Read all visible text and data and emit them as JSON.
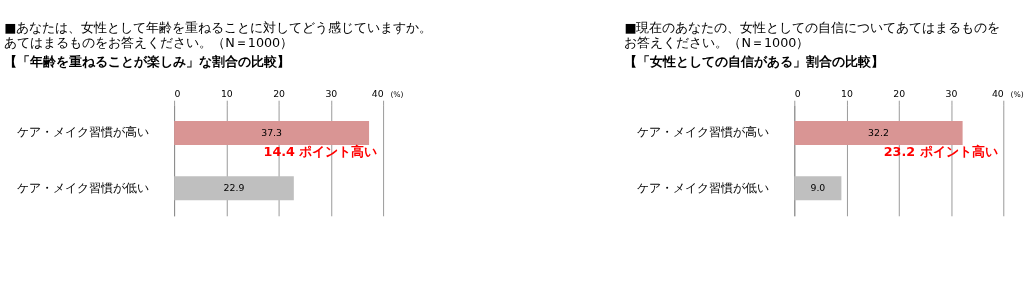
{
  "chart_data": [
    {
      "type": "bar",
      "orientation": "horizontal",
      "title": [
        "■あなたは、女性として年齢を重ねることに対してどう感じていますか。",
        "あてはまるものをお答えください。（N＝1000）"
      ],
      "subtitle": "【「年齢を重ねることが楽しみ」な割合の比較】",
      "xlabel": "(%)",
      "categories": [
        "ケア・メイク習慣が高い",
        "ケア・メイク習慣が低い"
      ],
      "values": [
        37.3,
        22.9
      ],
      "value_labels": [
        "37.3",
        "22.9"
      ],
      "colors": [
        "#d99594",
        "#bfbfbf"
      ],
      "xlim": [
        0,
        40
      ],
      "xticks": [
        0,
        10,
        20,
        30,
        40
      ],
      "grid": "x",
      "annotations": [
        "14.4 ポイント高い"
      ]
    },
    {
      "type": "bar",
      "orientation": "horizontal",
      "title": [
        "■現在のあなたの、女性としての自信についてあてはまるものを",
        "お答えください。（N＝1000）"
      ],
      "subtitle": "【「女性としての自信がある」割合の比較】",
      "xlabel": "(%)",
      "categories": [
        "ケア・メイク習慣が高い",
        "ケア・メイク習慣が低い"
      ],
      "values": [
        32.2,
        9.0
      ],
      "value_labels": [
        "32.2",
        "9.0"
      ],
      "colors": [
        "#d99594",
        "#bfbfbf"
      ],
      "xlim": [
        0,
        40
      ],
      "xticks": [
        0,
        10,
        20,
        30,
        40
      ],
      "grid": "x",
      "annotations": [
        "23.2 ポイント高い"
      ]
    }
  ]
}
